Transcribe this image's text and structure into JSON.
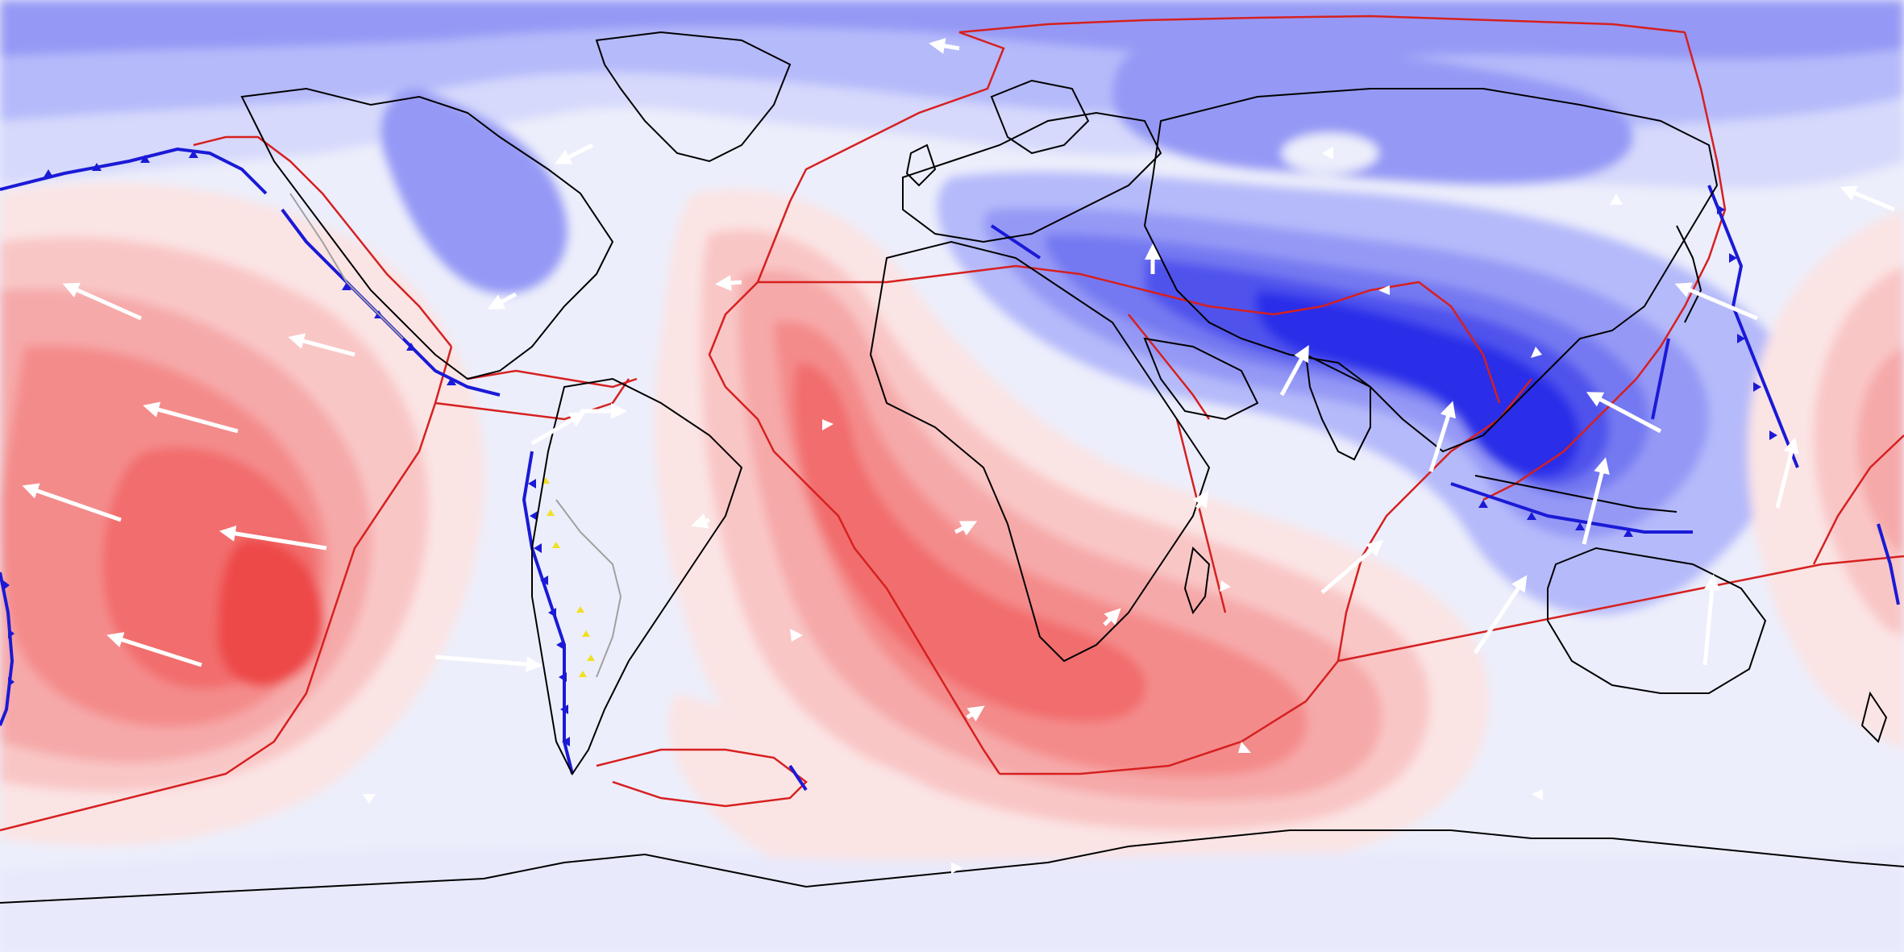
{
  "map": {
    "projection": "equirectangular",
    "field_colors": {
      "positive": [
        "#fbe4e4",
        "#f9c6c6",
        "#f6a9a9",
        "#f48b8b",
        "#f26d6d",
        "#ee4848"
      ],
      "neutral": "#eceefb",
      "negative": [
        "#d6d9fb",
        "#b5bafa",
        "#9599f5",
        "#7479f1",
        "#4f53ec",
        "#2a2fe8"
      ]
    },
    "overlay_colors": {
      "coastline": "#000000",
      "plate_boundary": "#d62020",
      "subduction_trench": "#1a1ad6",
      "trench_teeth": "#1a1ad6",
      "volcanic_arc": "#f0e020",
      "fault_lines_gray": "#a0a0a0",
      "velocity_arrows": "#ffffff"
    }
  }
}
